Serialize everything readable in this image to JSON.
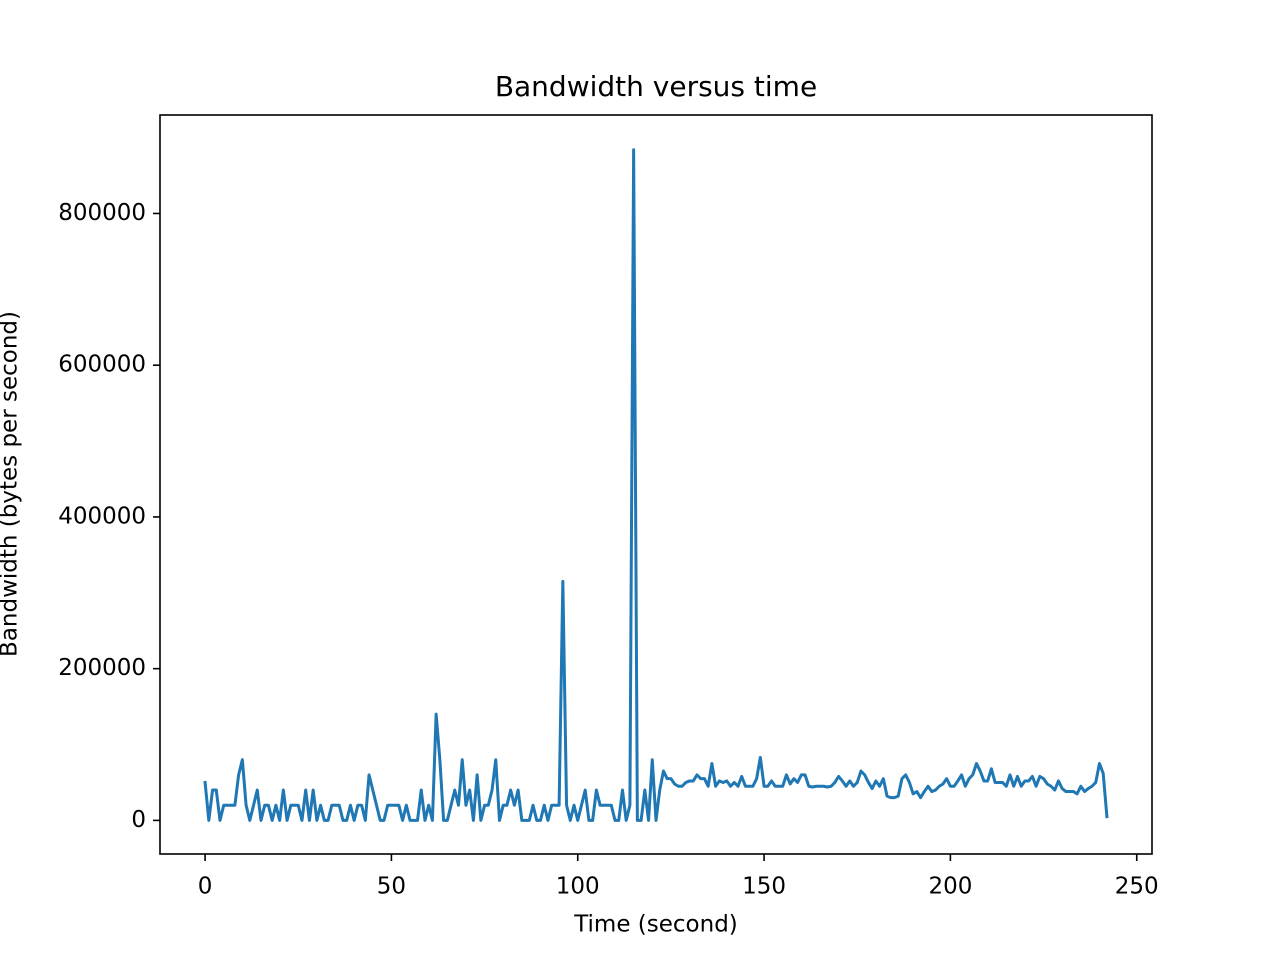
{
  "chart_data": {
    "type": "line",
    "title": "Bandwidth versus time",
    "xlabel": "Time (second)",
    "ylabel": "Bandwidth (bytes per second)",
    "x": [
      0,
      1,
      2,
      3,
      4,
      5,
      6,
      7,
      8,
      9,
      10,
      11,
      12,
      13,
      14,
      15,
      16,
      17,
      18,
      19,
      20,
      21,
      22,
      23,
      24,
      25,
      26,
      27,
      28,
      29,
      30,
      31,
      32,
      33,
      34,
      35,
      36,
      37,
      38,
      39,
      40,
      41,
      42,
      43,
      44,
      45,
      46,
      47,
      48,
      49,
      50,
      51,
      52,
      53,
      54,
      55,
      56,
      57,
      58,
      59,
      60,
      61,
      62,
      63,
      64,
      65,
      66,
      67,
      68,
      69,
      70,
      71,
      72,
      73,
      74,
      75,
      76,
      77,
      78,
      79,
      80,
      81,
      82,
      83,
      84,
      85,
      86,
      87,
      88,
      89,
      90,
      91,
      92,
      93,
      94,
      95,
      96,
      97,
      98,
      99,
      100,
      101,
      102,
      103,
      104,
      105,
      106,
      107,
      108,
      109,
      110,
      111,
      112,
      113,
      114,
      115,
      116,
      117,
      118,
      119,
      120,
      121,
      122,
      123,
      124,
      125,
      126,
      127,
      128,
      129,
      130,
      131,
      132,
      133,
      134,
      135,
      136,
      137,
      138,
      139,
      140,
      141,
      142,
      143,
      144,
      145,
      146,
      147,
      148,
      149,
      150,
      151,
      152,
      153,
      154,
      155,
      156,
      157,
      158,
      159,
      160,
      161,
      162,
      163,
      164,
      165,
      166,
      167,
      168,
      169,
      170,
      171,
      172,
      173,
      174,
      175,
      176,
      177,
      178,
      179,
      180,
      181,
      182,
      183,
      184,
      185,
      186,
      187,
      188,
      189,
      190,
      191,
      192,
      193,
      194,
      195,
      196,
      197,
      198,
      199,
      200,
      201,
      202,
      203,
      204,
      205,
      206,
      207,
      208,
      209,
      210,
      211,
      212,
      213,
      214,
      215,
      216,
      217,
      218,
      219,
      220,
      221,
      222,
      223,
      224,
      225,
      226,
      227,
      228,
      229,
      230,
      231,
      232,
      233,
      234,
      235,
      236,
      237,
      238,
      239,
      240,
      241,
      242
    ],
    "series": [
      {
        "color": "#1f77b4",
        "values": [
          50000,
          0,
          40000,
          40000,
          0,
          20000,
          20000,
          20000,
          20000,
          60000,
          80000,
          20000,
          0,
          20000,
          40000,
          0,
          20000,
          20000,
          0,
          20000,
          0,
          40000,
          0,
          20000,
          20000,
          20000,
          0,
          40000,
          0,
          40000,
          0,
          20000,
          0,
          0,
          20000,
          20000,
          20000,
          0,
          0,
          20000,
          0,
          20000,
          20000,
          0,
          60000,
          40000,
          20000,
          0,
          0,
          20000,
          20000,
          20000,
          20000,
          0,
          20000,
          0,
          0,
          0,
          40000,
          0,
          20000,
          0,
          140000,
          80000,
          0,
          0,
          20000,
          40000,
          20000,
          80000,
          20000,
          40000,
          0,
          60000,
          0,
          20000,
          20000,
          40000,
          80000,
          0,
          20000,
          20000,
          40000,
          20000,
          40000,
          0,
          0,
          0,
          20000,
          0,
          0,
          20000,
          0,
          20000,
          20000,
          20000,
          315000,
          20000,
          0,
          20000,
          0,
          20000,
          40000,
          0,
          0,
          40000,
          20000,
          20000,
          20000,
          20000,
          0,
          0,
          40000,
          0,
          20000,
          884000,
          0,
          0,
          40000,
          0,
          80000,
          0,
          40000,
          65000,
          55000,
          55000,
          48000,
          45000,
          45000,
          50000,
          52000,
          52000,
          60000,
          55000,
          55000,
          45000,
          75000,
          45000,
          52000,
          50000,
          52000,
          45000,
          50000,
          45000,
          58000,
          45000,
          45000,
          45000,
          55000,
          83000,
          45000,
          45000,
          52000,
          45000,
          45000,
          45000,
          60000,
          48000,
          55000,
          50000,
          60000,
          60000,
          45000,
          44000,
          45000,
          45000,
          45000,
          44000,
          45000,
          50000,
          58000,
          52000,
          45000,
          52000,
          45000,
          50000,
          65000,
          60000,
          50000,
          42000,
          52000,
          45000,
          55000,
          32000,
          30000,
          30000,
          32000,
          55000,
          60000,
          50000,
          35000,
          38000,
          30000,
          38000,
          45000,
          38000,
          40000,
          45000,
          48000,
          55000,
          45000,
          45000,
          52000,
          60000,
          45000,
          55000,
          60000,
          75000,
          65000,
          52000,
          52000,
          68000,
          50000,
          50000,
          50000,
          45000,
          60000,
          45000,
          58000,
          45000,
          52000,
          52000,
          58000,
          45000,
          58000,
          55000,
          48000,
          45000,
          40000,
          52000,
          42000,
          38000,
          38000,
          38000,
          35000,
          45000,
          38000,
          42000,
          45000,
          50000,
          75000,
          62000,
          5000
        ]
      }
    ],
    "xlim": [
      -12.1,
      254.1
    ],
    "ylim": [
      -44300,
      929800
    ],
    "xticks": [
      0,
      50,
      100,
      150,
      200,
      250
    ],
    "yticks": [
      0,
      200000,
      400000,
      600000,
      800000
    ]
  }
}
